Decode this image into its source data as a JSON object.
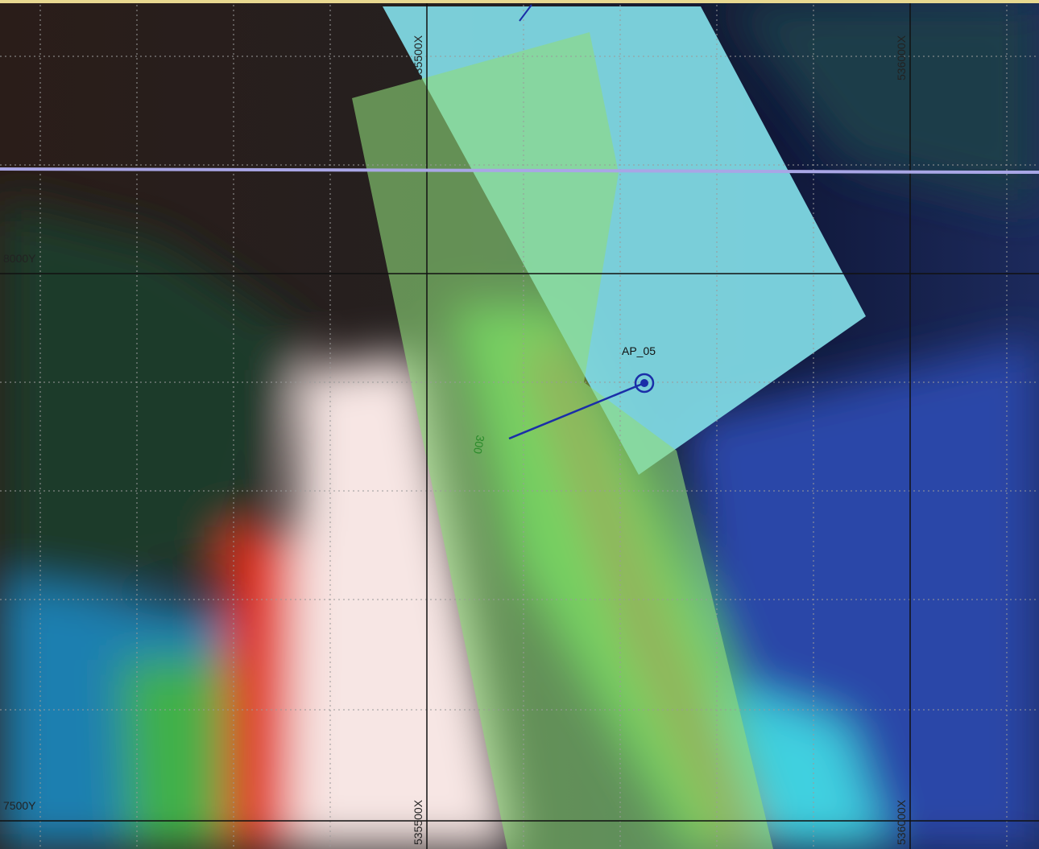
{
  "grid_labels": {
    "x_top": [
      "535500X",
      "536000X"
    ],
    "x_bottom": [
      "535500X",
      "536000X"
    ],
    "y": [
      "8000Y",
      "7500Y"
    ]
  },
  "wells": [
    {
      "label": "AP_05",
      "depth_label": "300"
    }
  ]
}
